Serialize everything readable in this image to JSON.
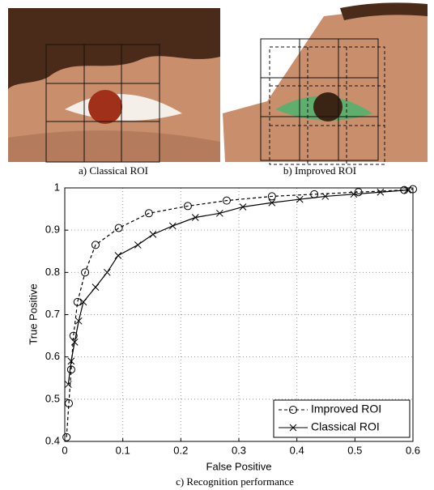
{
  "captions": [
    "a) Classical ROI",
    "b) Improved ROI",
    "c) Recognition performance"
  ],
  "chart_data": {
    "type": "line",
    "xlabel": "False Positive",
    "ylabel": "True Positive",
    "xlim": [
      0,
      0.6
    ],
    "ylim": [
      0.4,
      1
    ],
    "xticks": [
      0,
      0.1,
      0.2,
      0.3,
      0.4,
      0.5,
      0.6
    ],
    "yticks": [
      0.4,
      0.5,
      0.6,
      0.7,
      0.8,
      0.9,
      1
    ],
    "grid": true,
    "legend": "lower right",
    "series": [
      {
        "name": "Improved ROI",
        "color": "#000000",
        "linestyle": "dashed",
        "marker": "circle",
        "x": [
          0.003,
          0.007,
          0.011,
          0.015,
          0.022,
          0.035,
          0.053,
          0.093,
          0.145,
          0.212,
          0.279,
          0.357,
          0.43,
          0.506,
          0.585,
          0.6
        ],
        "values": [
          0.41,
          0.49,
          0.57,
          0.65,
          0.73,
          0.8,
          0.865,
          0.905,
          0.94,
          0.957,
          0.97,
          0.98,
          0.985,
          0.99,
          0.995,
          0.997
        ]
      },
      {
        "name": "Classical ROI",
        "color": "#000000",
        "linestyle": "solid",
        "marker": "x",
        "x": [
          0.006,
          0.011,
          0.017,
          0.024,
          0.032,
          0.053,
          0.073,
          0.092,
          0.126,
          0.152,
          0.186,
          0.225,
          0.267,
          0.307,
          0.357,
          0.405,
          0.449,
          0.498,
          0.544,
          0.591
        ],
        "values": [
          0.535,
          0.59,
          0.635,
          0.685,
          0.73,
          0.765,
          0.8,
          0.84,
          0.865,
          0.89,
          0.91,
          0.93,
          0.94,
          0.955,
          0.965,
          0.973,
          0.98,
          0.985,
          0.99,
          0.995
        ]
      }
    ]
  }
}
